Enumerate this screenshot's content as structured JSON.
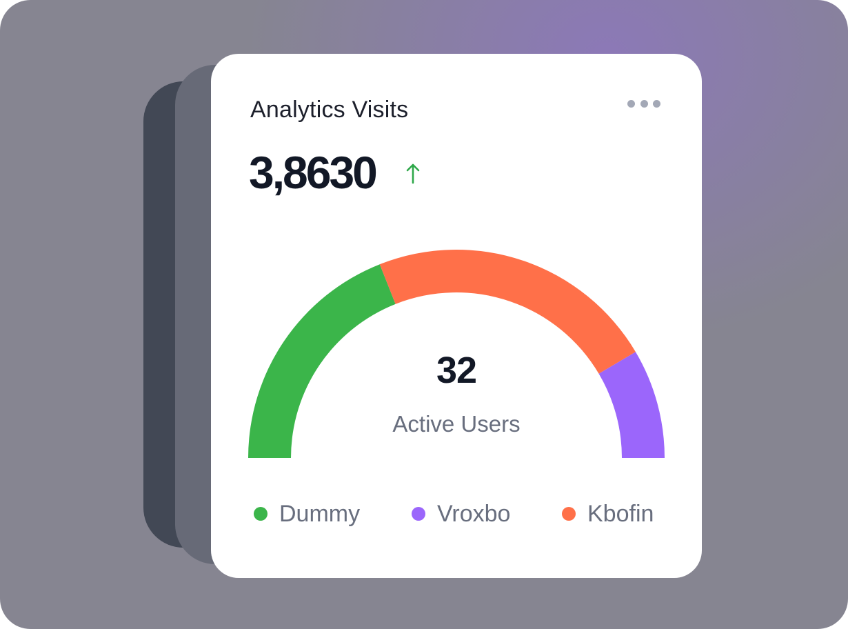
{
  "card": {
    "title": "Analytics Visits",
    "total_value": "3,8630",
    "trend_direction": "up",
    "trend_icon": "arrow-up-icon",
    "menu_icon": "more-horizontal-icon"
  },
  "chart_data": {
    "type": "pie",
    "variant": "semi-donut gauge",
    "center_value": "32",
    "center_label": "Active Users",
    "slices": [
      {
        "name": "Dummy",
        "value": 38,
        "color": "#3bb54a"
      },
      {
        "name": "Kbofin",
        "value": 45,
        "color": "#ff7049"
      },
      {
        "name": "Vroxbo",
        "value": 17,
        "color": "#9b66fb"
      }
    ],
    "legend": [
      {
        "name": "Dummy",
        "color": "#3bb54a"
      },
      {
        "name": "Vroxbo",
        "color": "#9b66fb"
      },
      {
        "name": "Kbofin",
        "color": "#ff7049"
      }
    ],
    "legend_position": "bottom"
  },
  "colors": {
    "trend_up": "#2fa84a",
    "card_background": "#ffffff",
    "frame_background": "#868591"
  }
}
